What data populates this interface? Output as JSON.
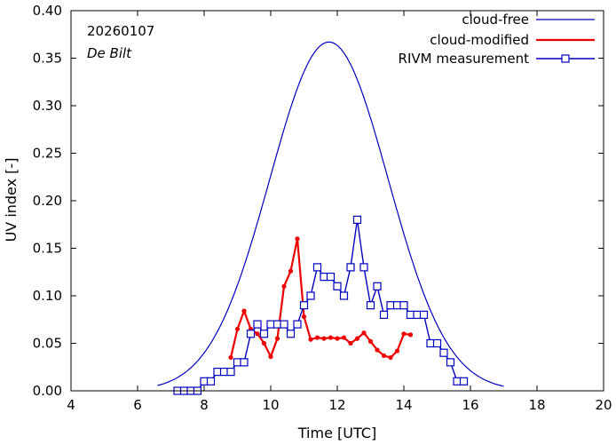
{
  "chart_data": {
    "type": "line",
    "title": "",
    "annotations": {
      "date": "20260107",
      "location": "De Bilt"
    },
    "xlabel": "Time  [UTC]",
    "ylabel": "UV index  [-]",
    "xlim": [
      4,
      20
    ],
    "ylim": [
      0,
      0.4
    ],
    "x_ticks": [
      4,
      6,
      8,
      10,
      12,
      14,
      16,
      18,
      20
    ],
    "y_ticks": [
      "0.00",
      "0.05",
      "0.10",
      "0.15",
      "0.20",
      "0.25",
      "0.30",
      "0.35",
      "0.40"
    ],
    "legend_position": "top-right",
    "series": [
      {
        "name": "cloud-free",
        "color": "#0000c0",
        "marker": "none",
        "peak_time": 11.75,
        "peak_value": 0.367,
        "sigma": 1.78,
        "x_range": [
          6.6,
          17.0
        ]
      },
      {
        "name": "cloud-modified",
        "color": "#ee0000",
        "marker": "dot",
        "x": [
          8.8,
          9.0,
          9.2,
          9.4,
          9.6,
          9.8,
          10.0,
          10.2,
          10.4,
          10.6,
          10.8,
          11.0,
          11.2,
          11.4,
          11.6,
          11.8,
          12.0,
          12.2,
          12.4,
          12.6,
          12.8,
          13.0,
          13.2,
          13.4,
          13.6,
          13.8,
          14.0,
          14.2
        ],
        "values": [
          0.035,
          0.065,
          0.084,
          0.065,
          0.06,
          0.05,
          0.036,
          0.055,
          0.11,
          0.126,
          0.16,
          0.078,
          0.054,
          0.056,
          0.055,
          0.056,
          0.055,
          0.056,
          0.05,
          0.055,
          0.061,
          0.052,
          0.043,
          0.037,
          0.035,
          0.042,
          0.06,
          0.059
        ]
      },
      {
        "name": "RIVM measurement",
        "color": "#0000c0",
        "marker": "square",
        "x": [
          7.2,
          7.4,
          7.6,
          7.8,
          8.0,
          8.2,
          8.4,
          8.6,
          8.8,
          9.0,
          9.2,
          9.4,
          9.6,
          9.8,
          10.0,
          10.2,
          10.4,
          10.6,
          10.8,
          11.0,
          11.2,
          11.4,
          11.6,
          11.8,
          12.0,
          12.2,
          12.4,
          12.6,
          12.8,
          13.0,
          13.2,
          13.4,
          13.6,
          13.8,
          14.0,
          14.2,
          14.4,
          14.6,
          14.8,
          15.0,
          15.2,
          15.4,
          15.6,
          15.8
        ],
        "values": [
          0.0,
          0.0,
          0.0,
          0.0,
          0.01,
          0.01,
          0.02,
          0.02,
          0.02,
          0.03,
          0.03,
          0.06,
          0.07,
          0.06,
          0.07,
          0.07,
          0.07,
          0.06,
          0.07,
          0.09,
          0.1,
          0.13,
          0.12,
          0.12,
          0.11,
          0.1,
          0.13,
          0.18,
          0.13,
          0.09,
          0.11,
          0.08,
          0.09,
          0.09,
          0.09,
          0.08,
          0.08,
          0.08,
          0.05,
          0.05,
          0.04,
          0.03,
          0.01,
          0.01
        ]
      }
    ]
  }
}
